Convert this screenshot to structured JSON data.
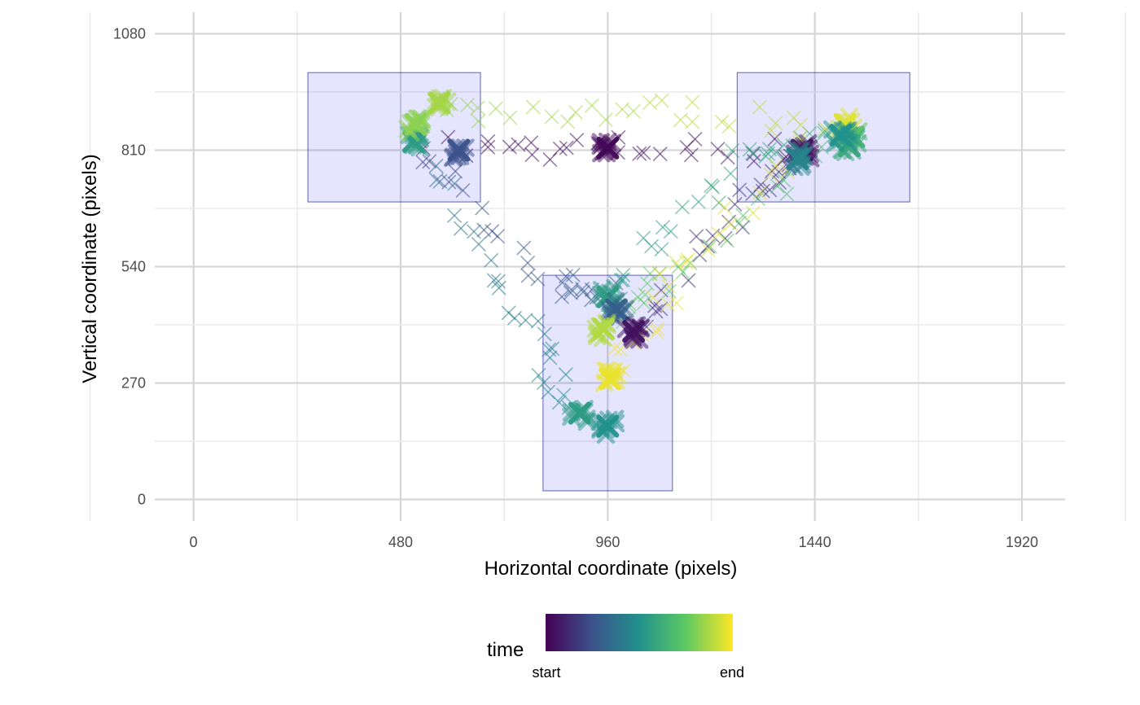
{
  "chart_data": {
    "type": "scatter",
    "title": "",
    "xlabel": "Horizontal coordinate (pixels)",
    "ylabel": "Vertical coordinate (pixels)",
    "xlim": [
      -90,
      2020
    ],
    "ylim": [
      -50,
      1130
    ],
    "x_ticks": [
      0,
      480,
      960,
      1440,
      1920
    ],
    "x_tick_labels": [
      "0",
      "480",
      "960",
      "1440",
      "1920"
    ],
    "y_ticks": [
      0,
      270,
      540,
      810,
      1080
    ],
    "y_tick_labels": [
      "0",
      "270",
      "540",
      "810",
      "1080"
    ],
    "grid": true,
    "marker": "x",
    "regions": [
      {
        "x0": 265,
        "x1": 665,
        "y0": 690,
        "y1": 990
      },
      {
        "x0": 1260,
        "x1": 1660,
        "y0": 690,
        "y1": 990
      },
      {
        "x0": 810,
        "x1": 1110,
        "y0": 20,
        "y1": 520
      }
    ],
    "region_fill": "#0000ff",
    "fixations": [
      {
        "x": 510,
        "y": 830,
        "t": 0.55,
        "size": "large"
      },
      {
        "x": 515,
        "y": 870,
        "t": 0.82,
        "size": "large"
      },
      {
        "x": 570,
        "y": 920,
        "t": 0.86,
        "size": "large"
      },
      {
        "x": 615,
        "y": 810,
        "t": 0.25,
        "size": "large"
      },
      {
        "x": 960,
        "y": 815,
        "t": 0.02,
        "size": "large"
      },
      {
        "x": 1410,
        "y": 810,
        "t": 0.05,
        "size": "large"
      },
      {
        "x": 1400,
        "y": 790,
        "t": 0.45,
        "size": "large"
      },
      {
        "x": 1510,
        "y": 870,
        "t": 0.95,
        "size": "large"
      },
      {
        "x": 1530,
        "y": 840,
        "t": 0.72,
        "size": "large"
      },
      {
        "x": 1520,
        "y": 820,
        "t": 0.6,
        "size": "large"
      },
      {
        "x": 1500,
        "y": 845,
        "t": 0.5,
        "size": "large"
      },
      {
        "x": 960,
        "y": 470,
        "t": 0.55,
        "size": "large"
      },
      {
        "x": 980,
        "y": 440,
        "t": 0.3,
        "size": "large"
      },
      {
        "x": 1020,
        "y": 390,
        "t": 0.05,
        "size": "large"
      },
      {
        "x": 950,
        "y": 395,
        "t": 0.88,
        "size": "large"
      },
      {
        "x": 965,
        "y": 280,
        "t": 0.97,
        "size": "large"
      },
      {
        "x": 895,
        "y": 200,
        "t": 0.55,
        "size": "large"
      },
      {
        "x": 960,
        "y": 170,
        "t": 0.5,
        "size": "large"
      }
    ],
    "color_legend": {
      "title": "time",
      "labels": [
        "start",
        "end"
      ],
      "stops": [
        "#440154",
        "#3b528b",
        "#21918c",
        "#5ec962",
        "#fde725"
      ]
    }
  }
}
